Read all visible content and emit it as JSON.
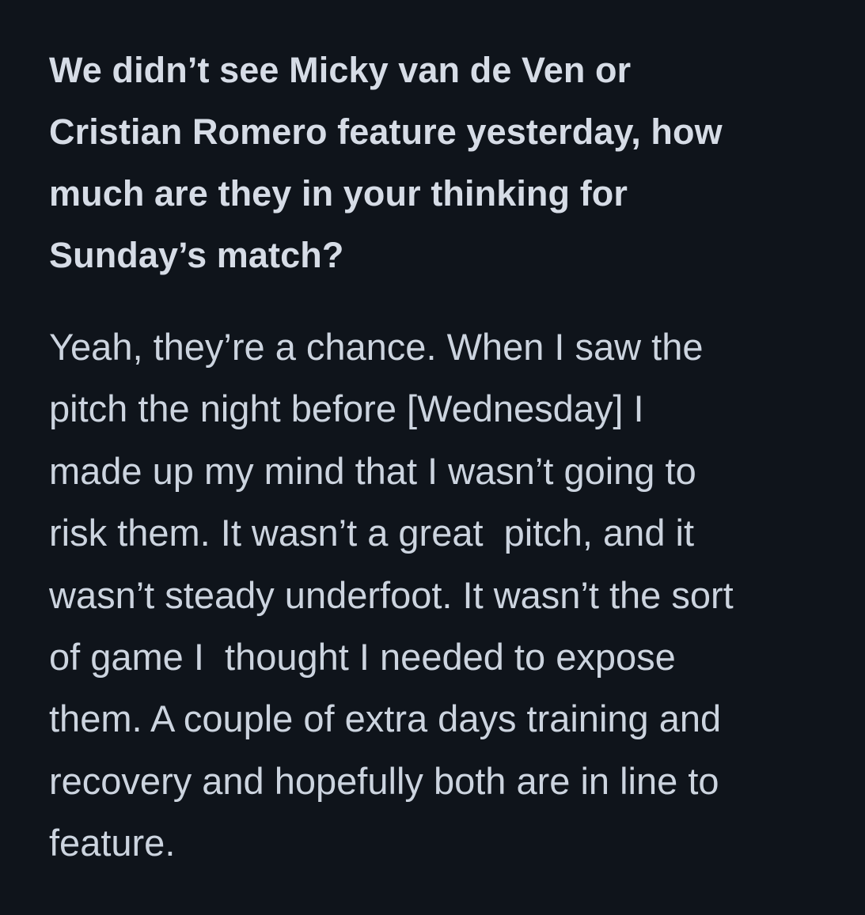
{
  "question_lines": [
    "We didn’t see Micky van de Ven or",
    "Cristian Romero feature yesterday, how",
    "much are they in your thinking for",
    "Sunday’s match?"
  ],
  "answer_lines": [
    "Yeah, they’re a chance. When I saw the",
    "pitch the night before [Wednesday] I",
    "made up my mind that I wasn’t going to",
    "risk them. It wasn’t a great  pitch, and it",
    "wasn’t steady underfoot. It wasn’t the sort",
    "of game I  thought I needed to expose",
    "them. A couple of extra days training and",
    "recovery and hopefully both are in line to",
    "feature."
  ]
}
